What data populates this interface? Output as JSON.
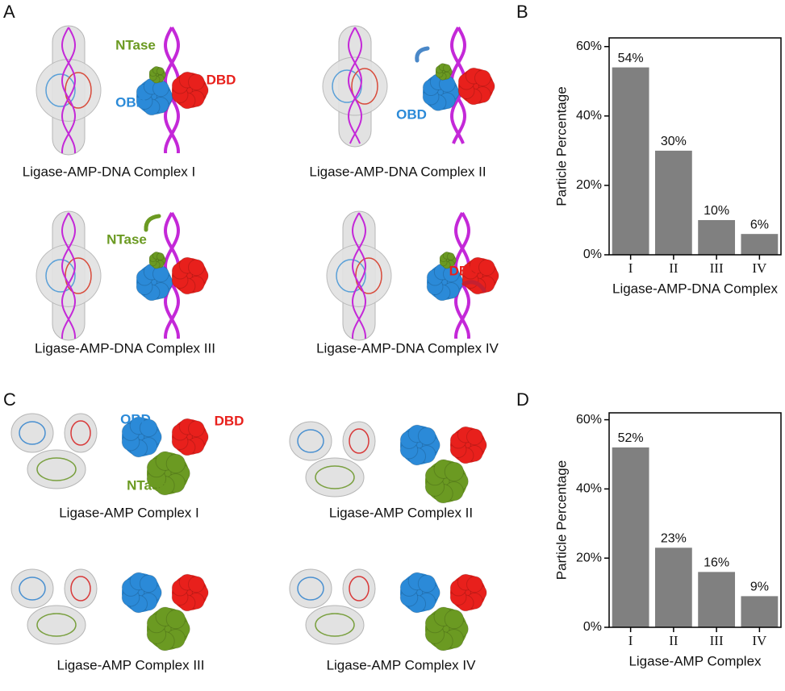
{
  "panel_labels": [
    "A",
    "B",
    "C",
    "D"
  ],
  "structures": [
    {
      "caption": "Ligase-AMP-DNA Complex I",
      "labels": [
        "NTase",
        "OBD",
        "DBD"
      ]
    },
    {
      "caption": "Ligase-AMP-DNA Complex II",
      "labels": [
        "OBD"
      ]
    },
    {
      "caption": "Ligase-AMP-DNA Complex III",
      "labels": [
        "NTase"
      ]
    },
    {
      "caption": "Ligase-AMP-DNA Complex IV",
      "labels": [
        "DBD"
      ]
    },
    {
      "caption": "Ligase-AMP Complex I",
      "labels": [
        "OBD",
        "DBD",
        "NTase"
      ]
    },
    {
      "caption": "Ligase-AMP Complex II"
    },
    {
      "caption": "Ligase-AMP Complex III"
    },
    {
      "caption": "Ligase-AMP Complex IV"
    }
  ],
  "chart_data": [
    {
      "type": "bar",
      "categories": [
        "I",
        "II",
        "III",
        "IV"
      ],
      "values": [
        54,
        30,
        10,
        6
      ],
      "value_labels": [
        "54%",
        "30%",
        "10%",
        "6%"
      ],
      "color": "#808080",
      "ylim": [
        0,
        62.5
      ],
      "yticks": [
        {
          "value": 0,
          "label": "0%"
        },
        {
          "value": 20,
          "label": "20%"
        },
        {
          "value": 40,
          "label": "40%"
        },
        {
          "value": 60,
          "label": "60%"
        }
      ],
      "ylabel": "Particle Percentage",
      "xlabel": "Ligase-AMP-DNA Complex"
    },
    {
      "type": "bar",
      "categories": [
        "I",
        "II",
        "III",
        "IV"
      ],
      "values": [
        52,
        23,
        16,
        9
      ],
      "value_labels": [
        "52%",
        "23%",
        "16%",
        "9%"
      ],
      "color": "#808080",
      "ylim": [
        0,
        62
      ],
      "yticks": [
        {
          "value": 0,
          "label": "0%"
        },
        {
          "value": 20,
          "label": "20%"
        },
        {
          "value": 40,
          "label": "40%"
        },
        {
          "value": 60,
          "label": "60%"
        }
      ],
      "ylabel": "Particle Percentage",
      "xlabel": "Ligase-AMP Complex"
    }
  ]
}
